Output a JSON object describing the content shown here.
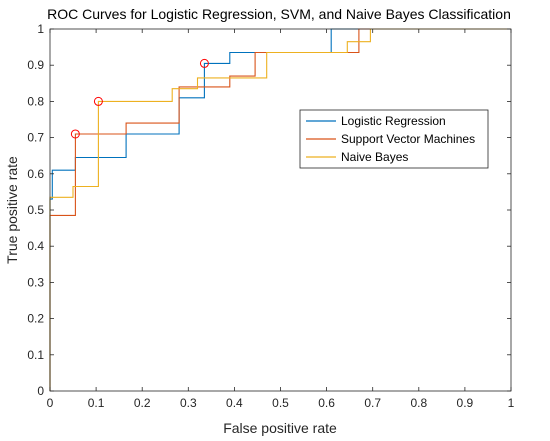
{
  "chart_data": {
    "type": "line",
    "title": "ROC Curves for Logistic Regression, SVM, and Naive Bayes Classification",
    "xlabel": "False positive rate",
    "ylabel": "True positive rate",
    "xlim": [
      0,
      1
    ],
    "ylim": [
      0,
      1
    ],
    "xticks": [
      "0",
      "0.1",
      "0.2",
      "0.3",
      "0.4",
      "0.5",
      "0.6",
      "0.7",
      "0.8",
      "0.9",
      "1"
    ],
    "yticks": [
      "0",
      "0.1",
      "0.2",
      "0.3",
      "0.4",
      "0.5",
      "0.6",
      "0.7",
      "0.8",
      "0.9",
      "1"
    ],
    "grid": false,
    "legend_position": "right-middle",
    "series": [
      {
        "name": "Logistic Regression",
        "color": "#0072BD",
        "points": [
          [
            0,
            0
          ],
          [
            0,
            0.53
          ],
          [
            0.005,
            0.53
          ],
          [
            0.005,
            0.61
          ],
          [
            0.055,
            0.61
          ],
          [
            0.055,
            0.645
          ],
          [
            0.165,
            0.645
          ],
          [
            0.165,
            0.71
          ],
          [
            0.28,
            0.71
          ],
          [
            0.28,
            0.81
          ],
          [
            0.335,
            0.81
          ],
          [
            0.335,
            0.905
          ],
          [
            0.39,
            0.905
          ],
          [
            0.39,
            0.935
          ],
          [
            0.61,
            0.935
          ],
          [
            0.61,
            1
          ],
          [
            1,
            1
          ]
        ]
      },
      {
        "name": "Support Vector Machines",
        "color": "#D95319",
        "points": [
          [
            0,
            0
          ],
          [
            0,
            0.485
          ],
          [
            0.055,
            0.485
          ],
          [
            0.055,
            0.71
          ],
          [
            0.165,
            0.71
          ],
          [
            0.165,
            0.74
          ],
          [
            0.28,
            0.74
          ],
          [
            0.28,
            0.84
          ],
          [
            0.39,
            0.84
          ],
          [
            0.39,
            0.87
          ],
          [
            0.445,
            0.87
          ],
          [
            0.445,
            0.935
          ],
          [
            0.67,
            0.935
          ],
          [
            0.67,
            1
          ],
          [
            1,
            1
          ]
        ]
      },
      {
        "name": "Naive Bayes",
        "color": "#EDB120",
        "points": [
          [
            0,
            0
          ],
          [
            0,
            0.535
          ],
          [
            0.05,
            0.535
          ],
          [
            0.05,
            0.565
          ],
          [
            0.105,
            0.565
          ],
          [
            0.105,
            0.8
          ],
          [
            0.265,
            0.8
          ],
          [
            0.265,
            0.835
          ],
          [
            0.32,
            0.835
          ],
          [
            0.32,
            0.865
          ],
          [
            0.47,
            0.865
          ],
          [
            0.47,
            0.935
          ],
          [
            0.645,
            0.935
          ],
          [
            0.645,
            0.965
          ],
          [
            0.695,
            0.965
          ],
          [
            0.695,
            1
          ],
          [
            1,
            1
          ]
        ]
      }
    ],
    "markers": [
      {
        "x": 0.055,
        "y": 0.71,
        "color": "#FF0000"
      },
      {
        "x": 0.105,
        "y": 0.8,
        "color": "#FF0000"
      },
      {
        "x": 0.335,
        "y": 0.905,
        "color": "#FF0000"
      }
    ]
  }
}
